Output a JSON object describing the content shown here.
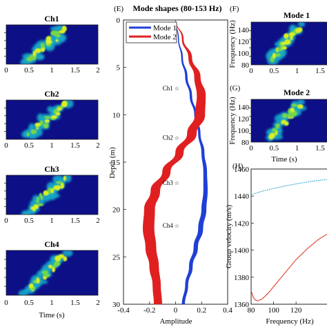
{
  "chart_data": [
    {
      "type": "heatmap",
      "title": "Ch1",
      "xlabel": "",
      "xlim": [
        0,
        2
      ],
      "xticks": [
        "0",
        "0.5",
        "1",
        "1.5",
        "2"
      ]
    },
    {
      "type": "heatmap",
      "title": "Ch2",
      "xlabel": "",
      "xlim": [
        0,
        2
      ],
      "xticks": [
        "0",
        "0.5",
        "1",
        "1.5",
        "2"
      ]
    },
    {
      "type": "heatmap",
      "title": "Ch3",
      "xlabel": "",
      "xlim": [
        0,
        2
      ],
      "xticks": [
        "0",
        "0.5",
        "1",
        "1.5",
        "2"
      ]
    },
    {
      "type": "heatmap",
      "title": "Ch4",
      "xlabel": "Time (s)",
      "xlim": [
        0,
        2
      ],
      "xticks": [
        "0",
        "0.5",
        "1",
        "1.5",
        "2"
      ]
    },
    {
      "type": "line",
      "panel_label": "(E)",
      "title": "Mode shapes (80-153 Hz)",
      "xlabel": "Amplitude",
      "ylabel": "Depth (m)",
      "xlim": [
        -0.4,
        0.4
      ],
      "ylim": [
        0,
        30
      ],
      "y_inverted": true,
      "xticks": [
        "-0.4",
        "-0.2",
        "0",
        "0.2",
        "0.4"
      ],
      "yticks": [
        "0",
        "5",
        "10",
        "15",
        "20",
        "25",
        "30"
      ],
      "legend": {
        "placement": "top-left",
        "entries": [
          "Mode 1",
          "Mode 2"
        ]
      },
      "series": [
        {
          "name": "Mode 1",
          "color": "#1f3fd6",
          "depth": [
            0,
            2,
            4,
            6,
            8,
            10,
            12,
            14,
            16,
            18,
            20,
            22,
            24,
            26,
            28,
            30
          ],
          "amplitude_low": [
            0,
            0.02,
            0.045,
            0.075,
            0.11,
            0.145,
            0.175,
            0.2,
            0.215,
            0.215,
            0.2,
            0.175,
            0.14,
            0.105,
            0.075,
            0.05
          ],
          "amplitude_high": [
            0,
            0.025,
            0.055,
            0.09,
            0.125,
            0.16,
            0.19,
            0.22,
            0.24,
            0.245,
            0.235,
            0.21,
            0.17,
            0.13,
            0.095,
            0.07
          ]
        },
        {
          "name": "Mode 2",
          "color": "#e02020",
          "depth": [
            0,
            2,
            4,
            6,
            8,
            10,
            12,
            14,
            16,
            18,
            20,
            22,
            24,
            26,
            28,
            30
          ],
          "amplitude_low": [
            0,
            0.05,
            0.1,
            0.145,
            0.165,
            0.15,
            0.09,
            0.0,
            -0.1,
            -0.19,
            -0.24,
            -0.25,
            -0.23,
            -0.2,
            -0.175,
            -0.165
          ],
          "amplitude_high": [
            0,
            0.06,
            0.125,
            0.19,
            0.23,
            0.225,
            0.16,
            0.06,
            -0.04,
            -0.12,
            -0.16,
            -0.165,
            -0.15,
            -0.13,
            -0.115,
            -0.105
          ]
        }
      ],
      "annotations": [
        {
          "text": "Ch1",
          "x": -0.02,
          "y": 7.2
        },
        {
          "text": "Ch2",
          "x": -0.02,
          "y": 12.4
        },
        {
          "text": "Ch3",
          "x": -0.02,
          "y": 17.2
        },
        {
          "text": "Ch4",
          "x": -0.02,
          "y": 21.7
        }
      ]
    },
    {
      "type": "heatmap",
      "panel_label": "(F)",
      "title": "Mode 1",
      "xlabel": "",
      "ylabel": "Frequency (Hz)",
      "xlim": [
        0,
        1.5
      ],
      "ylim": [
        80,
        153
      ],
      "xticks": [
        "0",
        "0.5",
        "1",
        "1.5"
      ],
      "yticks": [
        "80",
        "100",
        "120",
        "140"
      ]
    },
    {
      "type": "heatmap",
      "panel_label": "(G)",
      "title": "Mode 2",
      "xlabel": "Time (s)",
      "ylabel": "Frequency (Hz)",
      "xlim": [
        0,
        1.5
      ],
      "ylim": [
        80,
        153
      ],
      "xticks": [
        "0",
        "0.5",
        "1",
        "1.5"
      ],
      "yticks": [
        "80",
        "100",
        "120",
        "140"
      ]
    },
    {
      "type": "line",
      "panel_label": "(H)",
      "title": "",
      "xlabel": "Frequency (Hz)",
      "ylabel": "Group velocity (m/s)",
      "xlim": [
        80,
        150
      ],
      "ylim": [
        1360,
        1460
      ],
      "xticks": [
        "80",
        "100",
        "120"
      ],
      "yticks": [
        "1360",
        "1380",
        "1400",
        "1420",
        "1440",
        "1460"
      ],
      "series": [
        {
          "color": "#3aaed8",
          "x": [
            80,
            90,
            100,
            110,
            120,
            130,
            140,
            150
          ],
          "y": [
            1441,
            1443.6,
            1445.6,
            1447.4,
            1449,
            1450.4,
            1451.6,
            1452.5
          ]
        },
        {
          "color": "#e03a2a",
          "x": [
            80,
            82,
            84,
            86,
            90,
            95,
            100,
            110,
            120,
            130,
            140,
            150
          ],
          "y": [
            1370,
            1365,
            1363,
            1362.5,
            1364,
            1368,
            1373,
            1383,
            1393,
            1401,
            1408,
            1413
          ]
        }
      ]
    }
  ]
}
